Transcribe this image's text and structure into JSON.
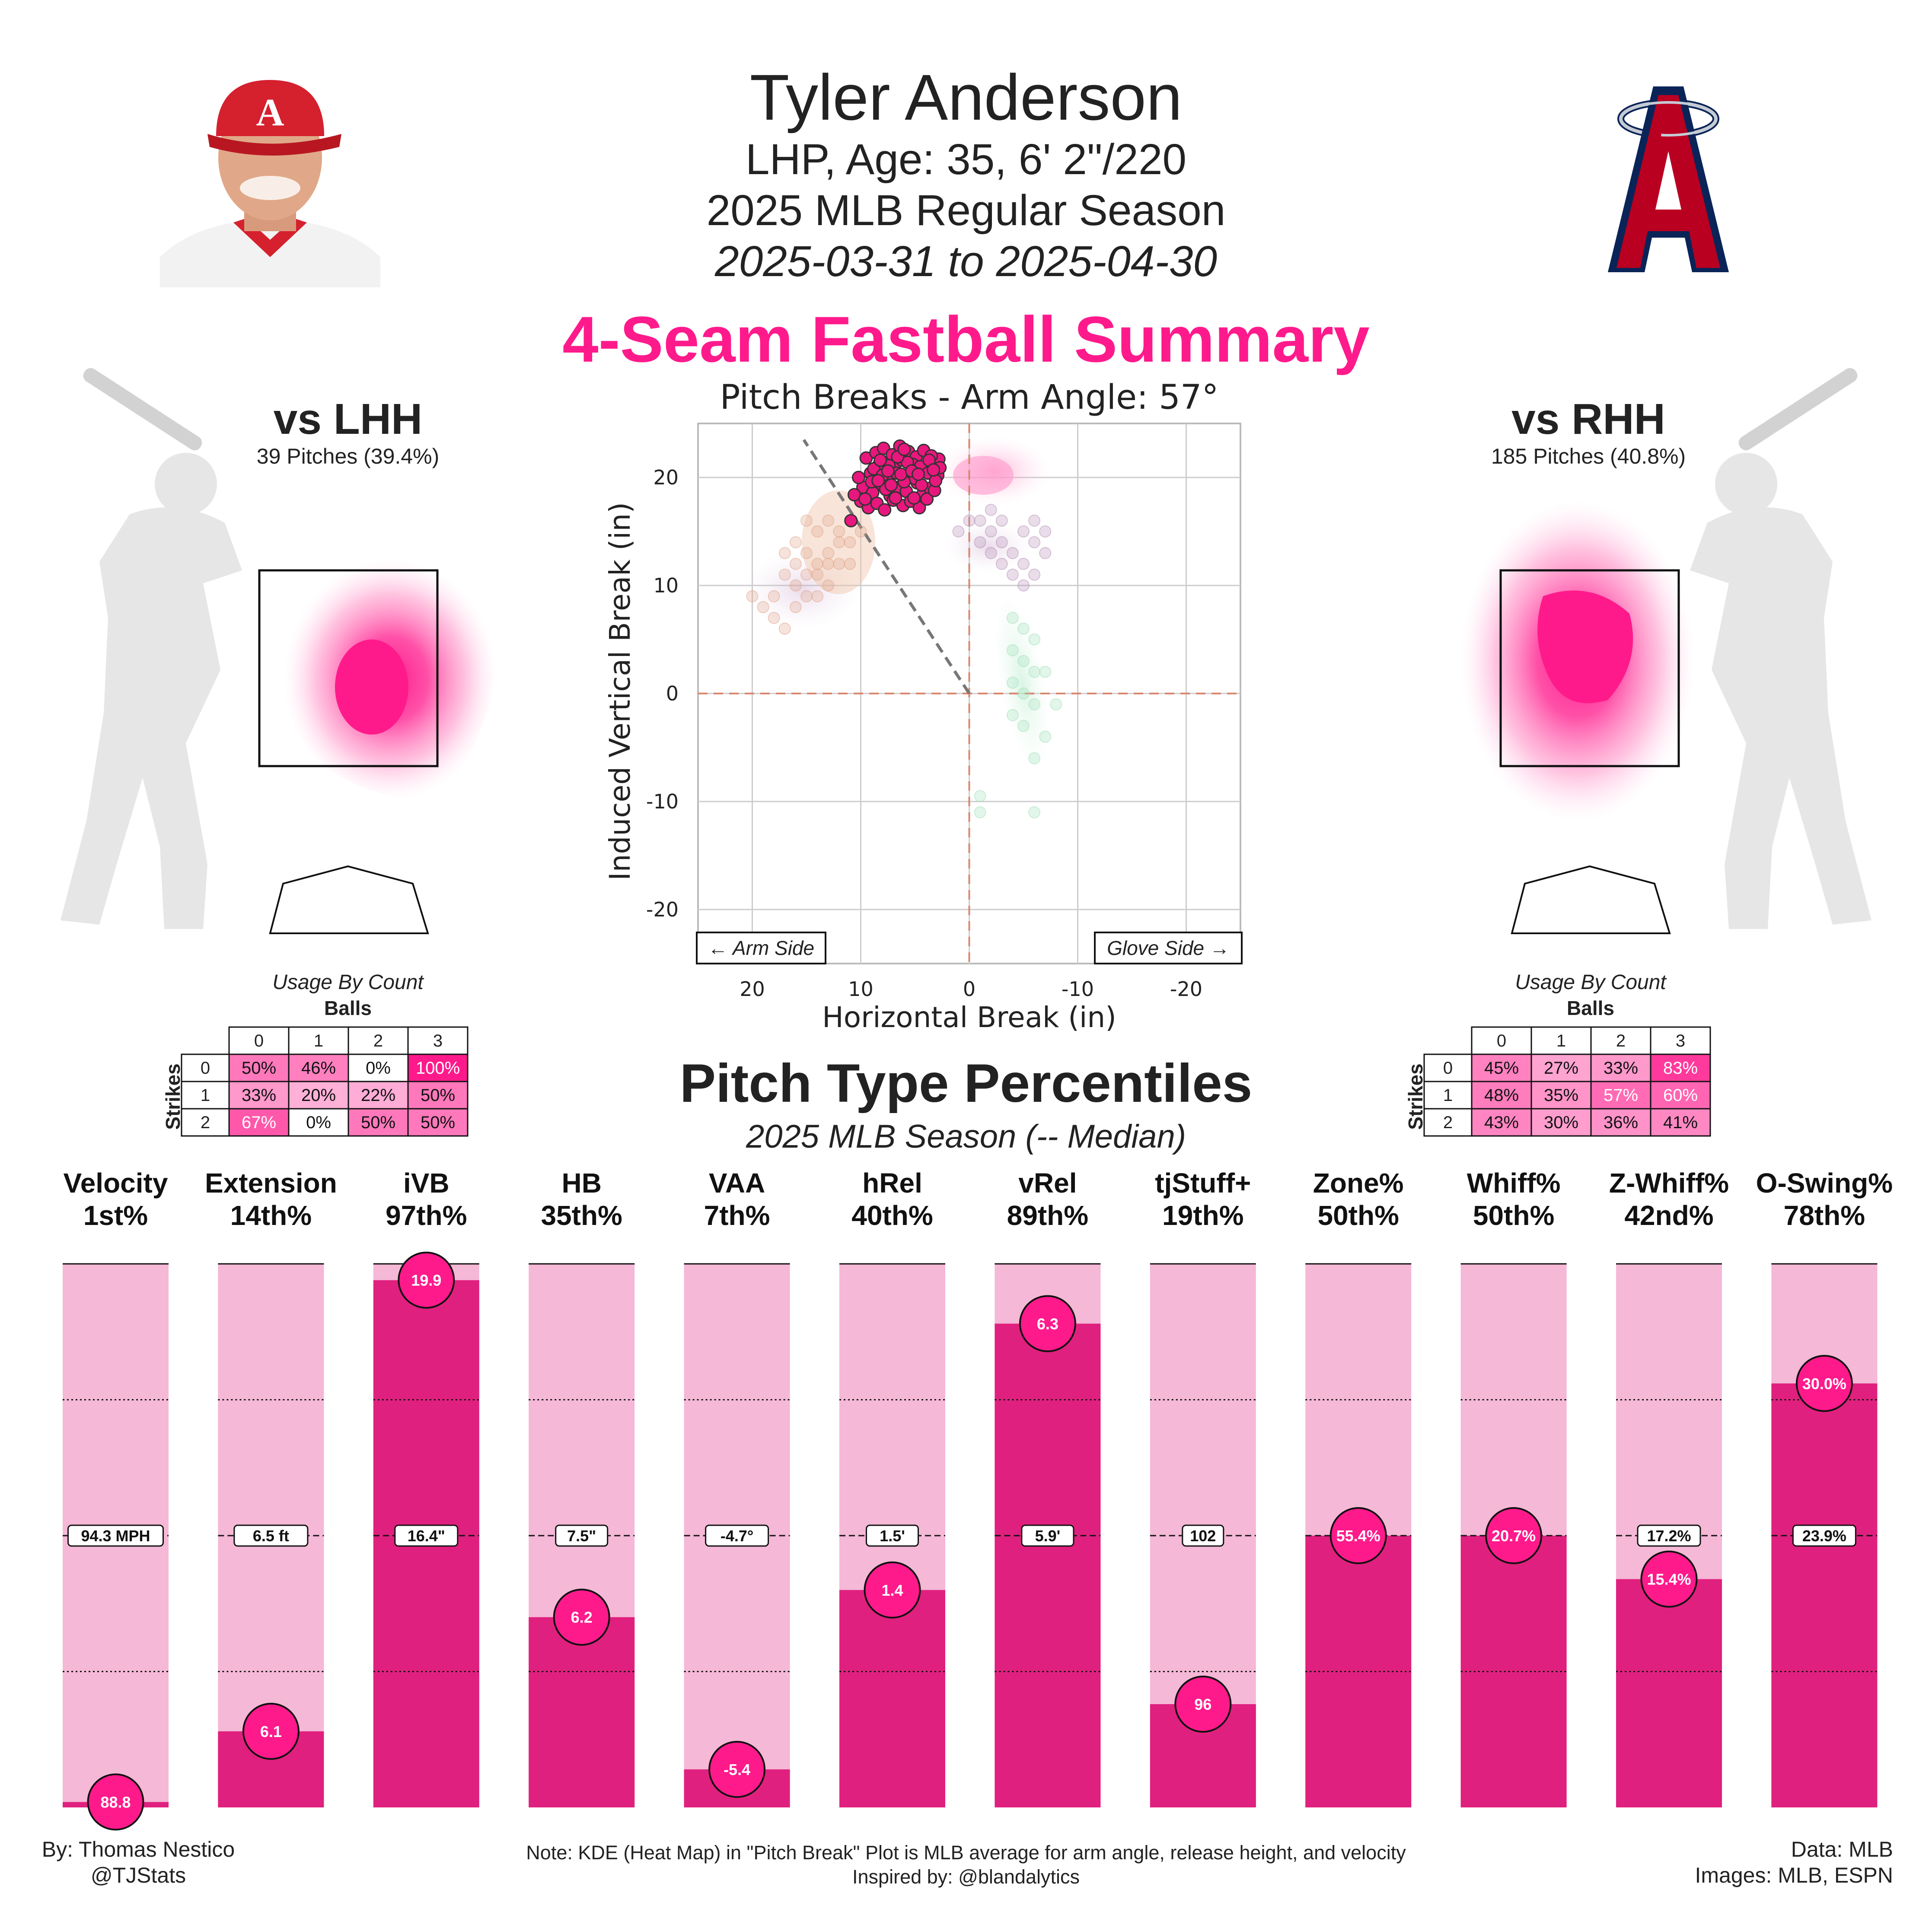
{
  "header": {
    "name": "Tyler Anderson",
    "bio": "LHP, Age: 35, 6' 2\"/220",
    "season": "2025 MLB Regular Season",
    "dates": "2025-03-31 to 2025-04-30"
  },
  "pitch_title": "4-Seam Fastball Summary",
  "break_plot": {
    "title": "Pitch Breaks - Arm Angle: 57°",
    "xlabel": "Horizontal Break (in)",
    "ylabel": "Induced Vertical Break (in)",
    "arm_side_label": "← Arm Side",
    "glove_side_label": "Glove Side →"
  },
  "lhh": {
    "title": "vs LHH",
    "subtitle": "39 Pitches (39.4%)",
    "usage_title": "Usage By Count",
    "balls_label": "Balls",
    "strikes_label": "Strikes",
    "ball_headers": [
      "0",
      "1",
      "2",
      "3"
    ],
    "strike_headers": [
      "0",
      "1",
      "2"
    ],
    "cells": [
      [
        "50%",
        "46%",
        "0%",
        "100%"
      ],
      [
        "33%",
        "20%",
        "22%",
        "50%"
      ],
      [
        "67%",
        "0%",
        "50%",
        "50%"
      ]
    ],
    "values": [
      [
        50,
        46,
        0,
        100
      ],
      [
        33,
        20,
        22,
        50
      ],
      [
        67,
        0,
        50,
        50
      ]
    ]
  },
  "rhh": {
    "title": "vs RHH",
    "subtitle": "185 Pitches (40.8%)",
    "usage_title": "Usage By Count",
    "balls_label": "Balls",
    "strikes_label": "Strikes",
    "ball_headers": [
      "0",
      "1",
      "2",
      "3"
    ],
    "strike_headers": [
      "0",
      "1",
      "2"
    ],
    "cells": [
      [
        "45%",
        "27%",
        "33%",
        "83%"
      ],
      [
        "48%",
        "35%",
        "57%",
        "60%"
      ],
      [
        "43%",
        "30%",
        "36%",
        "41%"
      ]
    ],
    "values": [
      [
        45,
        27,
        33,
        83
      ],
      [
        48,
        35,
        57,
        60
      ],
      [
        43,
        30,
        36,
        41
      ]
    ]
  },
  "percentiles": {
    "title": "Pitch Type Percentiles",
    "subtitle": "2025 MLB Season (-- Median)"
  },
  "footer": {
    "left1": "By: Thomas Nestico",
    "left2": "@TJStats",
    "center1": "Note: KDE (Heat Map) in \"Pitch Break\" Plot is MLB average for arm angle, release height, and velocity",
    "center2": "Inspired by: @blandalytics",
    "right1": "Data: MLB",
    "right2": "Images: MLB, ESPN"
  },
  "colors": {
    "accent": "#ff1a8c",
    "bar_fill": "#e0207e",
    "bar_bg": "#f5b8d6",
    "dark_text": "#222222"
  },
  "chart_data": [
    {
      "type": "scatter",
      "title": "Pitch Breaks - Arm Angle: 57°",
      "xlabel": "Horizontal Break (in)",
      "ylabel": "Induced Vertical Break (in)",
      "xlim": [
        25,
        -25
      ],
      "ylim": [
        -25,
        25
      ],
      "x_ticks": [
        20,
        10,
        0,
        -10,
        -20
      ],
      "y_ticks": [
        20,
        10,
        0,
        -10,
        -20
      ],
      "grid": true,
      "arm_angle_deg": 57,
      "series": [
        {
          "name": "4-Seam Fastball",
          "color": "#e8177d",
          "points": [
            [
              9.1,
              20.4
            ],
            [
              8.3,
              21.2
            ],
            [
              7.6,
              19.8
            ],
            [
              6.9,
              20.9
            ],
            [
              6.2,
              21.6
            ],
            [
              5.5,
              20.1
            ],
            [
              4.8,
              19.5
            ],
            [
              4.1,
              20.7
            ],
            [
              3.4,
              21.3
            ],
            [
              2.9,
              20.2
            ],
            [
              9.8,
              19.1
            ],
            [
              8.9,
              18.6
            ],
            [
              8.1,
              19.4
            ],
            [
              7.3,
              18.3
            ],
            [
              6.5,
              19.1
            ],
            [
              5.8,
              18.7
            ],
            [
              5.0,
              19.9
            ],
            [
              4.3,
              18.4
            ],
            [
              3.6,
              19.0
            ],
            [
              2.8,
              21.7
            ],
            [
              9.5,
              21.8
            ],
            [
              8.6,
              22.3
            ],
            [
              7.9,
              22.7
            ],
            [
              7.1,
              22.1
            ],
            [
              6.4,
              22.9
            ],
            [
              5.6,
              22.4
            ],
            [
              4.9,
              21.9
            ],
            [
              4.2,
              22.5
            ],
            [
              3.5,
              22.0
            ],
            [
              10.2,
              20.0
            ],
            [
              10.0,
              17.8
            ],
            [
              9.3,
              17.2
            ],
            [
              8.5,
              17.6
            ],
            [
              7.8,
              17.0
            ],
            [
              7.0,
              17.9
            ],
            [
              6.1,
              17.4
            ],
            [
              5.4,
              17.8
            ],
            [
              4.6,
              17.2
            ],
            [
              3.9,
              18.0
            ],
            [
              3.2,
              18.8
            ],
            [
              8.8,
              20.8
            ],
            [
              8.0,
              20.2
            ],
            [
              7.4,
              21.1
            ],
            [
              6.7,
              20.4
            ],
            [
              6.0,
              19.6
            ],
            [
              5.2,
              21.2
            ],
            [
              4.5,
              21.0
            ],
            [
              3.8,
              20.4
            ],
            [
              3.1,
              19.7
            ],
            [
              2.7,
              20.9
            ],
            [
              7.7,
              18.9
            ],
            [
              6.8,
              18.1
            ],
            [
              6.3,
              20.3
            ],
            [
              5.7,
              21.4
            ],
            [
              5.1,
              18.1
            ],
            [
              4.4,
              19.3
            ],
            [
              3.7,
              21.6
            ],
            [
              9.0,
              19.6
            ],
            [
              8.2,
              21.6
            ],
            [
              7.5,
              20.6
            ],
            [
              10.6,
              18.4
            ],
            [
              10.9,
              16.0
            ],
            [
              9.6,
              18.0
            ],
            [
              6.6,
              21.9
            ],
            [
              5.3,
              20.6
            ],
            [
              4.7,
              20.3
            ],
            [
              3.3,
              20.7
            ],
            [
              8.4,
              19.7
            ],
            [
              7.2,
              19.3
            ],
            [
              6.0,
              22.6
            ]
          ]
        },
        {
          "name": "MLB average (arm side)",
          "color": "#e0a48a",
          "points": [
            [
              18,
              9
            ],
            [
              17,
              11
            ],
            [
              16,
              12
            ],
            [
              15,
              13
            ],
            [
              14,
              15
            ],
            [
              13,
              16
            ],
            [
              12,
              14
            ],
            [
              11,
              16
            ],
            [
              16,
              10
            ],
            [
              15,
              11
            ],
            [
              14,
              12
            ],
            [
              13,
              13
            ],
            [
              12,
              15
            ],
            [
              11,
              14
            ],
            [
              17,
              13
            ],
            [
              16,
              14
            ],
            [
              15,
              16
            ],
            [
              14,
              11
            ],
            [
              13,
              10
            ],
            [
              12,
              12
            ],
            [
              19,
              8
            ],
            [
              18,
              7
            ],
            [
              17,
              6
            ],
            [
              16,
              8
            ],
            [
              20,
              9
            ],
            [
              15,
              9
            ],
            [
              14,
              9
            ],
            [
              13,
              12
            ],
            [
              11,
              12
            ],
            [
              10,
              15
            ]
          ]
        },
        {
          "name": "MLB average (glove side)",
          "color": "#b58db5",
          "points": [
            [
              -1,
              16
            ],
            [
              -2,
              15
            ],
            [
              -3,
              14
            ],
            [
              -4,
              13
            ],
            [
              -5,
              12
            ],
            [
              -6,
              14
            ],
            [
              -7,
              13
            ],
            [
              -5,
              15
            ],
            [
              -3,
              16
            ],
            [
              -2,
              17
            ],
            [
              -4,
              11
            ],
            [
              -6,
              11
            ],
            [
              -7,
              15
            ],
            [
              -1,
              14
            ],
            [
              -3,
              12
            ],
            [
              -5,
              10
            ],
            [
              -6,
              16
            ],
            [
              1,
              15
            ],
            [
              0,
              16
            ],
            [
              -2,
              13
            ]
          ]
        },
        {
          "name": "MLB average (low)",
          "color": "#9fe0b8",
          "points": [
            [
              -5,
              6
            ],
            [
              -4,
              4
            ],
            [
              -6,
              2
            ],
            [
              -5,
              0
            ],
            [
              -4,
              -2
            ],
            [
              -6,
              -1
            ],
            [
              -7,
              -4
            ],
            [
              -6,
              -6
            ],
            [
              -5,
              3
            ],
            [
              -4,
              1
            ],
            [
              -7,
              2
            ],
            [
              -5,
              -3
            ],
            [
              -6,
              5
            ],
            [
              -4,
              7
            ],
            [
              -8,
              -1
            ],
            [
              -6,
              -11
            ],
            [
              -1,
              -11
            ],
            [
              -1,
              -9.5
            ]
          ]
        }
      ]
    },
    {
      "type": "bar",
      "title": "Pitch Type Percentiles",
      "subtitle": "2025 MLB Season (-- Median)",
      "ylim": [
        0,
        100
      ],
      "median_percentile": 50,
      "categories": [
        "Velocity",
        "Extension",
        "iVB",
        "HB",
        "VAA",
        "hRel",
        "vRel",
        "tjStuff+",
        "Zone%",
        "Whiff%",
        "Z-Whiff%",
        "O-Swing%"
      ],
      "percentile_labels": [
        "1st%",
        "14th%",
        "97th%",
        "35th%",
        "7th%",
        "40th%",
        "89th%",
        "19th%",
        "50th%",
        "50th%",
        "42nd%",
        "78th%"
      ],
      "values": [
        1,
        14,
        97,
        35,
        7,
        40,
        89,
        19,
        50,
        50,
        42,
        78
      ],
      "player_values": [
        "88.8",
        "6.1",
        "19.9",
        "6.2",
        "-5.4",
        "1.4",
        "6.3",
        "96",
        "55.4%",
        "20.7%",
        "15.4%",
        "30.0%"
      ],
      "median_values": [
        "94.3 MPH",
        "6.5 ft",
        "16.4\"",
        "7.5\"",
        "-4.7°",
        "1.5'",
        "5.9'",
        "102",
        "",
        "",
        "17.2%",
        "23.9%"
      ]
    }
  ]
}
